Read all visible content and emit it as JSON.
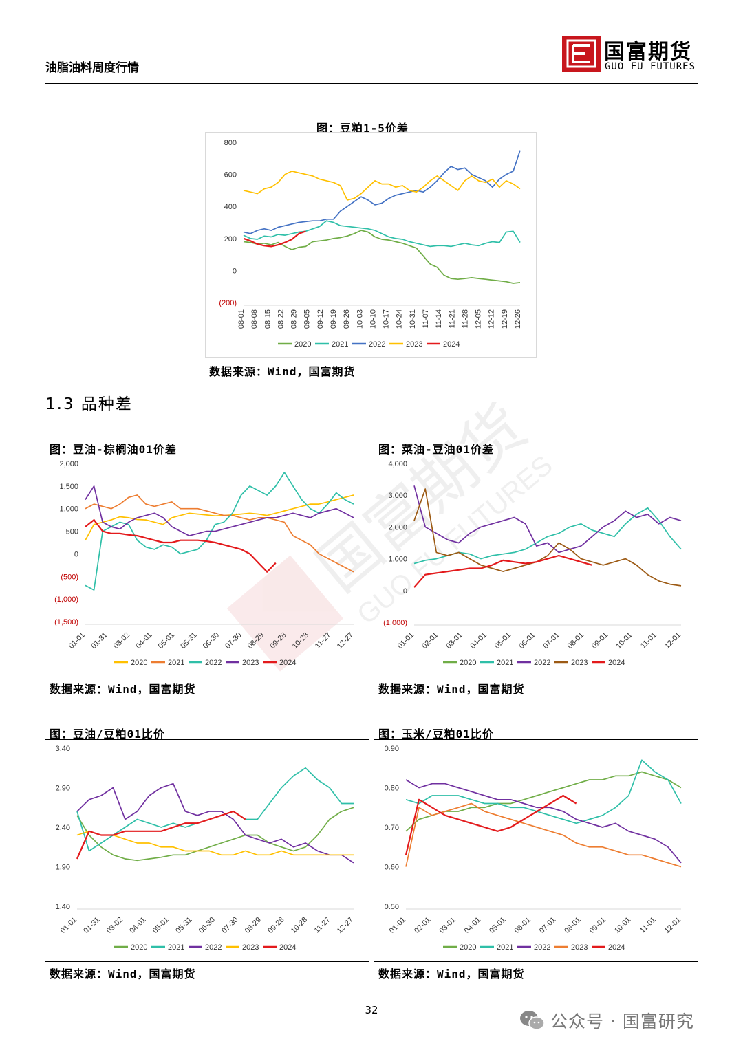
{
  "header": {
    "title": "油脂油料周度行情",
    "logo_cn": "国富期货",
    "logo_en": "GUO FU FUTURES"
  },
  "watermark": {
    "cn": "国富期货",
    "en": "GUO FU FUTURES"
  },
  "section": {
    "title": "1.3 品种差"
  },
  "page_number": "32",
  "footer": {
    "wechat": "公众号 · 国富研究",
    "icon": "wechat-icon"
  },
  "colors": {
    "2020": "#70ad47",
    "2021": "#2fbfa8",
    "2022": "#4472c4",
    "2023": "#ffc000",
    "2024": "#e31a1c",
    "orange": "#ed7d31",
    "purple": "#7030a0",
    "brown": "#9c5a14"
  },
  "chart_data": [
    {
      "id": "meal15",
      "type": "line",
      "title": "图：豆粕1-5价差",
      "source": "数据来源：Wind，国富期货",
      "ylim": [
        -200,
        800
      ],
      "y_ticks": [
        "800",
        "600",
        "400",
        "200",
        "0",
        "(200)"
      ],
      "x_ticks": [
        "08-01",
        "08-08",
        "08-15",
        "08-22",
        "08-29",
        "09-05",
        "09-12",
        "09-19",
        "09-26",
        "10-03",
        "10-10",
        "10-17",
        "10-24",
        "10-31",
        "11-07",
        "11-14",
        "11-21",
        "11-28",
        "12-05",
        "12-12",
        "12-19",
        "12-26"
      ],
      "legend": [
        "2020",
        "2021",
        "2022",
        "2023",
        "2024"
      ],
      "series": [
        {
          "name": "2020",
          "color": "#70ad47",
          "values": [
            180,
            175,
            165,
            170,
            160,
            175,
            150,
            130,
            145,
            150,
            180,
            185,
            190,
            200,
            205,
            215,
            230,
            250,
            240,
            210,
            195,
            190,
            180,
            170,
            155,
            140,
            90,
            40,
            20,
            -30,
            -50,
            -55,
            -50,
            -45,
            -50,
            -55,
            -60,
            -65,
            -70,
            -80,
            -75
          ]
        },
        {
          "name": "2021",
          "color": "#2fbfa8",
          "values": [
            220,
            200,
            195,
            215,
            210,
            225,
            220,
            230,
            240,
            245,
            260,
            275,
            310,
            300,
            280,
            275,
            270,
            265,
            260,
            250,
            230,
            210,
            200,
            195,
            180,
            170,
            160,
            150,
            155,
            155,
            150,
            160,
            170,
            160,
            155,
            170,
            180,
            175,
            240,
            245,
            175
          ]
        },
        {
          "name": "2022",
          "color": "#4472c4",
          "values": [
            240,
            230,
            250,
            260,
            250,
            270,
            280,
            290,
            300,
            305,
            310,
            310,
            320,
            320,
            370,
            400,
            430,
            460,
            440,
            410,
            420,
            450,
            470,
            480,
            490,
            500,
            490,
            520,
            560,
            610,
            650,
            630,
            640,
            600,
            580,
            560,
            520,
            570,
            600,
            620,
            750
          ]
        },
        {
          "name": "2023",
          "color": "#ffc000",
          "values": [
            500,
            490,
            480,
            510,
            520,
            550,
            600,
            620,
            610,
            600,
            590,
            570,
            560,
            550,
            530,
            440,
            450,
            480,
            520,
            560,
            540,
            540,
            520,
            530,
            500,
            490,
            520,
            560,
            590,
            560,
            530,
            500,
            560,
            590,
            560,
            550,
            570,
            520,
            560,
            540,
            510
          ]
        },
        {
          "name": "2024",
          "color": "#e31a1c",
          "values": [
            200,
            185,
            165,
            155,
            150,
            160,
            175,
            195,
            230,
            245
          ]
        }
      ]
    },
    {
      "id": "soy_palm",
      "type": "line",
      "title": "图：豆油-棕榈油01价差",
      "source": "数据来源：Wind，国富期货",
      "ylim": [
        -1500,
        2000
      ],
      "y_ticks": [
        "2,000",
        "1,500",
        "1,000",
        "500",
        "0",
        "(500)",
        "(1,000)",
        "(1,500)"
      ],
      "x_ticks": [
        "01-01",
        "01-31",
        "03-02",
        "04-01",
        "05-01",
        "05-31",
        "06-30",
        "07-30",
        "08-29",
        "09-28",
        "10-28",
        "11-27",
        "12-27"
      ],
      "legend": [
        "2020",
        "2021",
        "2022",
        "2023",
        "2024"
      ],
      "series": [
        {
          "name": "2020",
          "color": "#ffc000",
          "values": [
            300,
            650,
            700,
            750,
            820,
            800,
            760,
            750,
            700,
            650,
            800,
            850,
            900,
            880,
            860,
            840,
            850,
            860,
            880,
            900,
            880,
            850,
            900,
            950,
            1000,
            1050,
            1100,
            1100,
            1150,
            1200,
            1250,
            1300
          ]
        },
        {
          "name": "2021",
          "color": "#ed7d31",
          "values": [
            1000,
            1100,
            1050,
            1000,
            1100,
            1250,
            1300,
            1100,
            1050,
            1100,
            1150,
            1000,
            1000,
            1000,
            950,
            900,
            850,
            850,
            800,
            750,
            800,
            800,
            750,
            700,
            400,
            300,
            200,
            0,
            -100,
            -200,
            -300,
            -400
          ]
        },
        {
          "name": "2022",
          "color": "#2fbfa8",
          "values": [
            -700,
            -800,
            500,
            600,
            700,
            650,
            300,
            150,
            100,
            200,
            150,
            0,
            50,
            100,
            300,
            650,
            700,
            900,
            1300,
            1500,
            1400,
            1300,
            1500,
            1800,
            1500,
            1200,
            1000,
            900,
            1100,
            1350,
            1200,
            1100
          ]
        },
        {
          "name": "2023",
          "color": "#7030a0",
          "values": [
            1200,
            1500,
            700,
            600,
            550,
            700,
            800,
            850,
            900,
            800,
            600,
            500,
            400,
            450,
            500,
            500,
            550,
            600,
            650,
            700,
            750,
            800,
            800,
            850,
            900,
            850,
            800,
            900,
            950,
            1000,
            900,
            800
          ]
        },
        {
          "name": "2024",
          "color": "#e31a1c",
          "values": [
            600,
            750,
            500,
            450,
            450,
            420,
            400,
            350,
            300,
            250,
            250,
            300,
            300,
            300,
            280,
            250,
            200,
            150,
            100,
            0,
            -200,
            -400,
            -200
          ]
        }
      ]
    },
    {
      "id": "rape_soy",
      "type": "line",
      "title": "图：菜油-豆油01价差",
      "source": "数据来源：Wind，国富期货",
      "ylim": [
        -1000,
        4000
      ],
      "y_ticks": [
        "4,000",
        "3,000",
        "2,000",
        "1,000",
        "0",
        "(1,000)"
      ],
      "x_ticks": [
        "01-01",
        "02-01",
        "03-01",
        "04-01",
        "05-01",
        "06-01",
        "07-01",
        "08-01",
        "09-01",
        "10-01",
        "11-01",
        "12-01"
      ],
      "legend": [
        "2020",
        "2021",
        "2022",
        "2023",
        "2024"
      ],
      "series": [
        {
          "name": "2020",
          "color": "#70ad47",
          "values": []
        },
        {
          "name": "2021",
          "color": "#2fbfa8",
          "values": [
            850,
            950,
            1000,
            1100,
            1200,
            1150,
            1000,
            1100,
            1150,
            1200,
            1300,
            1500,
            1700,
            1800,
            2000,
            2100,
            1900,
            1800,
            1700,
            2100,
            2400,
            2600,
            2200,
            1700,
            1300
          ]
        },
        {
          "name": "2022",
          "color": "#7030a0",
          "values": [
            3300,
            2000,
            1800,
            1600,
            1500,
            1800,
            2000,
            2100,
            2200,
            2300,
            2100,
            1400,
            1500,
            1200,
            1300,
            1400,
            1700,
            2000,
            2200,
            2500,
            2300,
            2400,
            2100,
            2300,
            2200
          ]
        },
        {
          "name": "2023",
          "color": "#9c5a14",
          "values": [
            2200,
            3200,
            1200,
            1100,
            1200,
            1000,
            800,
            700,
            600,
            700,
            800,
            900,
            1100,
            1500,
            1300,
            1000,
            900,
            800,
            900,
            1000,
            800,
            500,
            300,
            200,
            150
          ]
        },
        {
          "name": "2024",
          "color": "#e31a1c",
          "values": [
            100,
            500,
            550,
            600,
            650,
            700,
            700,
            800,
            950,
            900,
            850,
            900,
            1000,
            1100,
            1000,
            900,
            800
          ]
        }
      ]
    },
    {
      "id": "soyoil_meal_ratio",
      "type": "line",
      "title": "图：豆油/豆粕01比价",
      "source": "数据来源：Wind，国富期货",
      "ylim": [
        1.4,
        3.4
      ],
      "y_ticks": [
        "3.40",
        "2.90",
        "2.40",
        "1.90",
        "1.40"
      ],
      "x_ticks": [
        "01-01",
        "01-31",
        "03-02",
        "04-01",
        "05-01",
        "05-31",
        "06-30",
        "07-30",
        "08-29",
        "09-28",
        "10-28",
        "11-27",
        "12-27"
      ],
      "legend": [
        "2020",
        "2021",
        "2022",
        "2023",
        "2024"
      ],
      "series": [
        {
          "name": "2020",
          "color": "#70ad47",
          "values": [
            2.55,
            2.3,
            2.15,
            2.05,
            2.0,
            1.98,
            2.0,
            2.02,
            2.05,
            2.05,
            2.1,
            2.15,
            2.2,
            2.25,
            2.3,
            2.3,
            2.2,
            2.15,
            2.1,
            2.15,
            2.3,
            2.5,
            2.6,
            2.65
          ]
        },
        {
          "name": "2021",
          "color": "#2fbfa8",
          "values": [
            2.6,
            2.1,
            2.2,
            2.3,
            2.4,
            2.5,
            2.45,
            2.4,
            2.45,
            2.4,
            2.45,
            2.5,
            2.55,
            2.6,
            2.5,
            2.5,
            2.7,
            2.9,
            3.05,
            3.15,
            3.0,
            2.9,
            2.7,
            2.7
          ]
        },
        {
          "name": "2022",
          "color": "#7030a0",
          "values": [
            2.6,
            2.75,
            2.8,
            2.9,
            2.5,
            2.6,
            2.8,
            2.9,
            2.95,
            2.6,
            2.55,
            2.6,
            2.6,
            2.5,
            2.3,
            2.25,
            2.2,
            2.25,
            2.15,
            2.2,
            2.1,
            2.05,
            2.05,
            1.95
          ]
        },
        {
          "name": "2023",
          "color": "#ffc000",
          "values": [
            2.3,
            2.35,
            2.3,
            2.3,
            2.25,
            2.2,
            2.2,
            2.15,
            2.15,
            2.1,
            2.1,
            2.1,
            2.05,
            2.05,
            2.1,
            2.05,
            2.05,
            2.1,
            2.05,
            2.05,
            2.05,
            2.05,
            2.05,
            2.05
          ]
        },
        {
          "name": "2024",
          "color": "#e31a1c",
          "values": [
            2.0,
            2.35,
            2.3,
            2.3,
            2.35,
            2.35,
            2.35,
            2.35,
            2.4,
            2.45,
            2.45,
            2.5,
            2.55,
            2.6,
            2.5
          ]
        }
      ]
    },
    {
      "id": "corn_meal_ratio",
      "type": "line",
      "title": "图：玉米/豆粕01比价",
      "source": "数据来源：Wind，国富期货",
      "ylim": [
        0.5,
        0.9
      ],
      "y_ticks": [
        "0.90",
        "0.80",
        "0.70",
        "0.60",
        "0.50"
      ],
      "x_ticks": [
        "01-01",
        "02-01",
        "03-01",
        "04-01",
        "05-01",
        "06-01",
        "07-01",
        "08-01",
        "09-01",
        "10-01",
        "11-01",
        "12-01"
      ],
      "legend": [
        "2020",
        "2021",
        "2022",
        "2023",
        "2024"
      ],
      "series": [
        {
          "name": "2020",
          "color": "#70ad47",
          "values": [
            0.69,
            0.72,
            0.73,
            0.74,
            0.74,
            0.75,
            0.75,
            0.76,
            0.76,
            0.77,
            0.78,
            0.79,
            0.8,
            0.81,
            0.82,
            0.82,
            0.83,
            0.83,
            0.84,
            0.83,
            0.82,
            0.8
          ]
        },
        {
          "name": "2021",
          "color": "#2fbfa8",
          "values": [
            0.77,
            0.76,
            0.78,
            0.78,
            0.78,
            0.77,
            0.76,
            0.76,
            0.75,
            0.75,
            0.74,
            0.73,
            0.72,
            0.71,
            0.72,
            0.73,
            0.75,
            0.78,
            0.87,
            0.84,
            0.82,
            0.76
          ]
        },
        {
          "name": "2022",
          "color": "#7030a0",
          "values": [
            0.82,
            0.8,
            0.81,
            0.81,
            0.8,
            0.79,
            0.78,
            0.77,
            0.77,
            0.76,
            0.75,
            0.75,
            0.74,
            0.72,
            0.71,
            0.7,
            0.71,
            0.69,
            0.68,
            0.67,
            0.65,
            0.61
          ]
        },
        {
          "name": "2023",
          "color": "#ed7d31",
          "values": [
            0.6,
            0.75,
            0.73,
            0.74,
            0.75,
            0.76,
            0.74,
            0.73,
            0.72,
            0.71,
            0.7,
            0.69,
            0.68,
            0.66,
            0.65,
            0.65,
            0.64,
            0.63,
            0.63,
            0.62,
            0.61,
            0.6
          ]
        },
        {
          "name": "2024",
          "color": "#e31a1c",
          "values": [
            0.63,
            0.77,
            0.75,
            0.73,
            0.72,
            0.71,
            0.7,
            0.69,
            0.7,
            0.72,
            0.74,
            0.76,
            0.78,
            0.76
          ]
        }
      ]
    }
  ]
}
